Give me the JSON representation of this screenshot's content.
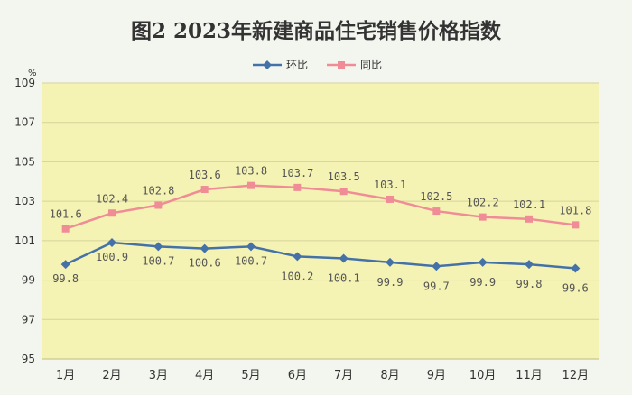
{
  "chart_data": {
    "type": "line",
    "title": "图2  2023年新建商品住宅销售价格指数",
    "unit": "%",
    "categories": [
      "1月",
      "2月",
      "3月",
      "4月",
      "5月",
      "6月",
      "7月",
      "8月",
      "9月",
      "10月",
      "11月",
      "12月"
    ],
    "series": [
      {
        "name": "环比",
        "color": "#4472a8",
        "marker": "diamond",
        "values": [
          99.8,
          100.9,
          100.7,
          100.6,
          100.7,
          100.2,
          100.1,
          99.9,
          99.7,
          99.9,
          99.8,
          99.6
        ],
        "labels": [
          "99.8",
          "100.9",
          "100.7",
          "100.6",
          "100.7",
          "100.2",
          "100.1",
          "99.9",
          "99.7",
          "99.9",
          "99.8",
          "99.6"
        ]
      },
      {
        "name": "同比",
        "color": "#f08c96",
        "marker": "square",
        "values": [
          101.6,
          102.4,
          102.8,
          103.6,
          103.8,
          103.7,
          103.5,
          103.1,
          102.5,
          102.2,
          102.1,
          101.8
        ],
        "labels": [
          "101.6",
          "102.4",
          "102.8",
          "103.6",
          "103.8",
          "103.7",
          "103.5",
          "103.1",
          "102.5",
          "102.2",
          "102.1",
          "101.8"
        ]
      }
    ],
    "ylim": [
      95,
      109
    ],
    "yticks": [
      "95",
      "97",
      "99",
      "101",
      "103",
      "105",
      "107",
      "109"
    ],
    "plot_background": "#f5f3b4",
    "grid": true,
    "legend_position": "top-center"
  }
}
